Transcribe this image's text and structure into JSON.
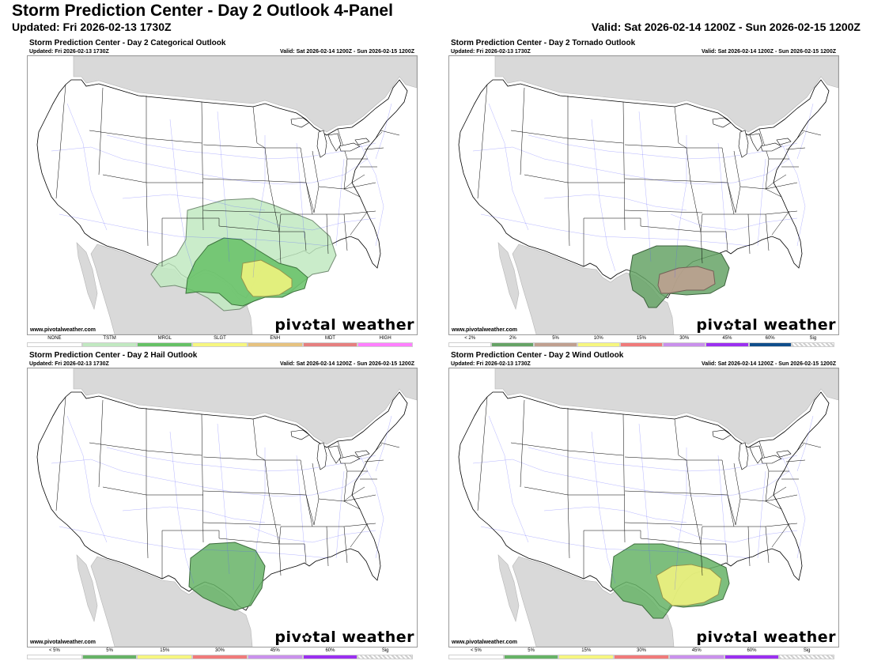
{
  "header": {
    "title": "Storm Prediction Center - Day 2 Outlook 4-Panel",
    "updated": "Updated: Fri 2026-02-13 1730Z",
    "valid": "Valid: Sat 2026-02-14 1200Z - Sun 2026-02-15 1200Z"
  },
  "colors": {
    "land": "#ffffff",
    "neighbor": "#d9d9d9",
    "water": "#ffffff",
    "roads": "#5555ff",
    "borders": "#000000"
  },
  "panels": [
    {
      "title": "Storm Prediction Center - Day 2 Categorical Outlook",
      "updated": "Updated: Fri 2026-02-13 1730Z",
      "valid": "Valid: Sat 2026-02-14 1200Z - Sun 2026-02-15 1200Z",
      "site": "www.pivotalweather.com",
      "brand_left": "piv",
      "brand_right": "tal weather",
      "legend": [
        {
          "label": "NONE",
          "color": "#ffffff"
        },
        {
          "label": "TSTM",
          "color": "#c1e9c1"
        },
        {
          "label": "MRGL",
          "color": "#66c166"
        },
        {
          "label": "SLGT",
          "color": "#f6f67f"
        },
        {
          "label": "ENH",
          "color": "#e6c27f"
        },
        {
          "label": "MDT",
          "color": "#e67f7f"
        },
        {
          "label": "HIGH",
          "color": "#ff7fff"
        }
      ]
    },
    {
      "title": "Storm Prediction Center - Day 2 Tornado Outlook",
      "updated": "Updated: Fri 2026-02-13 1730Z",
      "valid": "Valid: Sat 2026-02-14 1200Z - Sun 2026-02-15 1200Z",
      "site": "www.pivotalweather.com",
      "brand_left": "piv",
      "brand_right": "tal weather",
      "legend": [
        {
          "label": "< 2%",
          "color": "#ffffff"
        },
        {
          "label": "2%",
          "color": "#66a366"
        },
        {
          "label": "5%",
          "color": "#c0a090"
        },
        {
          "label": "10%",
          "color": "#f6f67f"
        },
        {
          "label": "15%",
          "color": "#f07a7a"
        },
        {
          "label": "30%",
          "color": "#c990ec"
        },
        {
          "label": "45%",
          "color": "#9b30f0"
        },
        {
          "label": "60%",
          "color": "#104e8b"
        },
        {
          "label": "Sig",
          "color": "sig"
        }
      ]
    },
    {
      "title": "Storm Prediction Center - Day 2 Hail Outlook",
      "updated": "Updated: Fri 2026-02-13 1730Z",
      "valid": "Valid: Sat 2026-02-14 1200Z - Sun 2026-02-15 1200Z",
      "site": "www.pivotalweather.com",
      "brand_left": "piv",
      "brand_right": "tal weather",
      "legend": [
        {
          "label": "< 5%",
          "color": "#ffffff"
        },
        {
          "label": "5%",
          "color": "#66b366"
        },
        {
          "label": "15%",
          "color": "#f6f67f"
        },
        {
          "label": "30%",
          "color": "#f07a7a"
        },
        {
          "label": "45%",
          "color": "#c990ec"
        },
        {
          "label": "60%",
          "color": "#9b30f0"
        },
        {
          "label": "Sig",
          "color": "sig"
        }
      ]
    },
    {
      "title": "Storm Prediction Center - Day 2 Wind Outlook",
      "updated": "Updated: Fri 2026-02-13 1730Z",
      "valid": "Valid: Sat 2026-02-14 1200Z - Sun 2026-02-15 1200Z",
      "site": "www.pivotalweather.com",
      "brand_left": "piv",
      "brand_right": "tal weather",
      "legend": [
        {
          "label": "< 5%",
          "color": "#ffffff"
        },
        {
          "label": "5%",
          "color": "#66b366"
        },
        {
          "label": "15%",
          "color": "#f6f67f"
        },
        {
          "label": "30%",
          "color": "#f07a7a"
        },
        {
          "label": "45%",
          "color": "#c990ec"
        },
        {
          "label": "60%",
          "color": "#9b30f0"
        },
        {
          "label": "Sig",
          "color": "sig"
        }
      ]
    }
  ]
}
